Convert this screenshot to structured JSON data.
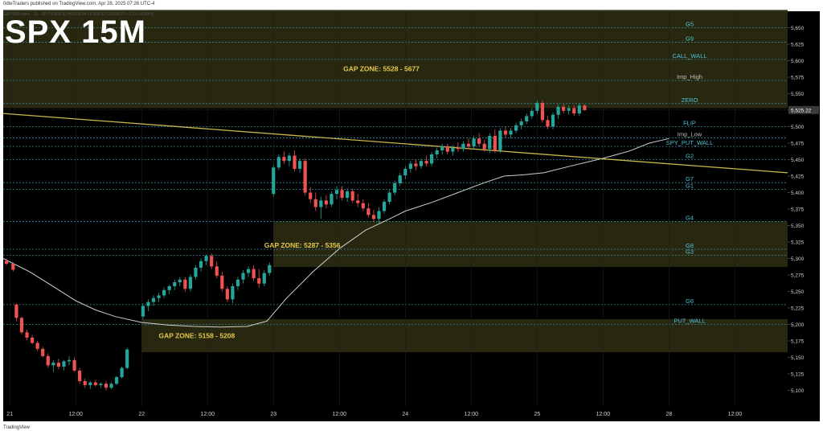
{
  "header": {
    "published": "0dteTraders published on TradingView.com, Apr 28, 2025 07:26 UTC-4",
    "instrument": "S&P 500 Index · 15 · SP  O5,524.32  H5,525.24  L5,524.32  C5,525.22 +1.71 (+0.03%)"
  },
  "title_overlay": "SPX 15M",
  "footer": {
    "brand": "TradingView"
  },
  "colors": {
    "background": "#000000",
    "gap_zone": "#2a2a12",
    "up_candle": "#26a69a",
    "down_candle": "#ef5350",
    "level_line": "#2f8fa0",
    "level_label": "#4fc3d9",
    "trendline": "#c9b84a",
    "moving_average": "#cfcfcf",
    "zone_label": "#e5c84a",
    "price_tag": "#3a3a3a"
  },
  "chart_data": {
    "type": "candlestick",
    "timeframe": "15M",
    "ylim": [
      5075,
      5675
    ],
    "y_ticks": [
      5100,
      5125,
      5150,
      5175,
      5200,
      5225,
      5250,
      5275,
      5300,
      5325,
      5350,
      5375,
      5400,
      5425,
      5450,
      5475,
      5500,
      5525,
      5550,
      5575,
      5600,
      5625,
      5650
    ],
    "x_ticks": [
      {
        "label": "21",
        "x": 0
      },
      {
        "label": "12:00",
        "x": 1
      },
      {
        "label": "22",
        "x": 2
      },
      {
        "label": "12:00",
        "x": 3
      },
      {
        "label": "23",
        "x": 4
      },
      {
        "label": "12:00",
        "x": 5
      },
      {
        "label": "24",
        "x": 6
      },
      {
        "label": "12:00",
        "x": 7
      },
      {
        "label": "25",
        "x": 8
      },
      {
        "label": "12:00",
        "x": 9
      },
      {
        "label": "28",
        "x": 10
      },
      {
        "label": "12:00",
        "x": 11
      }
    ],
    "xlim": [
      -0.1,
      11.8
    ],
    "current_price": "5,525.22",
    "current_value": 5525.22,
    "gap_zones": [
      {
        "label": "GAP ZONE: 5528 - 5677",
        "low": 5528,
        "high": 5677,
        "x_start": -0.1
      },
      {
        "label": "GAP ZONE: 5287 - 5356",
        "low": 5287,
        "high": 5356,
        "x_start": 4.0
      },
      {
        "label": "GAP ZONE: 5158 - 5208",
        "low": 5158,
        "high": 5208,
        "x_start": 2.0
      }
    ],
    "levels": [
      {
        "label": "G5",
        "value": 5650
      },
      {
        "label": "G9",
        "value": 5628
      },
      {
        "label": "CALL_WALL",
        "value": 5602
      },
      {
        "label": "Imp_High",
        "value": 5570
      },
      {
        "label": "ZERO",
        "value": 5535
      },
      {
        "label": "FLIP",
        "value": 5500
      },
      {
        "label": "Imp_Low",
        "value": 5483
      },
      {
        "label": "SPY_PUT_WALL",
        "value": 5470
      },
      {
        "label": "G2",
        "value": 5450
      },
      {
        "label": "G7",
        "value": 5415
      },
      {
        "label": "G1",
        "value": 5405
      },
      {
        "label": "G4",
        "value": 5356
      },
      {
        "label": "G8",
        "value": 5314
      },
      {
        "label": "G3",
        "value": 5305
      },
      {
        "label": "G6",
        "value": 5230
      },
      {
        "label": "PUT_WALL",
        "value": 5200
      }
    ],
    "trendline": {
      "start": [
        -0.1,
        5520
      ],
      "end": [
        11.8,
        5430
      ]
    },
    "moving_average": [
      [
        -0.1,
        5300
      ],
      [
        0.3,
        5280
      ],
      [
        0.7,
        5255
      ],
      [
        1.0,
        5236
      ],
      [
        1.3,
        5222
      ],
      [
        1.6,
        5212
      ],
      [
        2.0,
        5203
      ],
      [
        2.4,
        5199
      ],
      [
        2.8,
        5197
      ],
      [
        3.2,
        5196
      ],
      [
        3.6,
        5197
      ],
      [
        3.9,
        5205
      ],
      [
        4.2,
        5240
      ],
      [
        4.6,
        5280
      ],
      [
        5.0,
        5315
      ],
      [
        5.4,
        5343
      ],
      [
        5.8,
        5362
      ],
      [
        6.0,
        5372
      ],
      [
        6.4,
        5385
      ],
      [
        6.8,
        5400
      ],
      [
        7.2,
        5415
      ],
      [
        7.5,
        5425
      ],
      [
        7.8,
        5427
      ],
      [
        8.1,
        5430
      ],
      [
        8.5,
        5440
      ],
      [
        9.0,
        5452
      ],
      [
        9.4,
        5463
      ],
      [
        9.7,
        5475
      ],
      [
        10.0,
        5482
      ]
    ],
    "candles": [
      {
        "x": -0.05,
        "o": 5296,
        "h": 5300,
        "l": 5290,
        "c": 5292
      },
      {
        "x": 0.05,
        "o": 5292,
        "h": 5294,
        "l": 5280,
        "c": 5283
      },
      {
        "x": 0.1,
        "o": 5230,
        "h": 5232,
        "l": 5205,
        "c": 5210
      },
      {
        "x": 0.18,
        "o": 5210,
        "h": 5212,
        "l": 5185,
        "c": 5188
      },
      {
        "x": 0.26,
        "o": 5188,
        "h": 5192,
        "l": 5176,
        "c": 5180
      },
      {
        "x": 0.34,
        "o": 5180,
        "h": 5184,
        "l": 5170,
        "c": 5172
      },
      {
        "x": 0.42,
        "o": 5172,
        "h": 5175,
        "l": 5160,
        "c": 5163
      },
      {
        "x": 0.5,
        "o": 5163,
        "h": 5166,
        "l": 5150,
        "c": 5152
      },
      {
        "x": 0.58,
        "o": 5152,
        "h": 5156,
        "l": 5134,
        "c": 5138
      },
      {
        "x": 0.66,
        "o": 5138,
        "h": 5146,
        "l": 5128,
        "c": 5142
      },
      {
        "x": 0.74,
        "o": 5142,
        "h": 5148,
        "l": 5132,
        "c": 5136
      },
      {
        "x": 0.82,
        "o": 5136,
        "h": 5146,
        "l": 5130,
        "c": 5144
      },
      {
        "x": 0.9,
        "o": 5144,
        "h": 5152,
        "l": 5138,
        "c": 5146
      },
      {
        "x": 0.98,
        "o": 5146,
        "h": 5150,
        "l": 5128,
        "c": 5130
      },
      {
        "x": 1.06,
        "o": 5130,
        "h": 5134,
        "l": 5110,
        "c": 5114
      },
      {
        "x": 1.14,
        "o": 5114,
        "h": 5118,
        "l": 5104,
        "c": 5108
      },
      {
        "x": 1.22,
        "o": 5108,
        "h": 5114,
        "l": 5102,
        "c": 5112
      },
      {
        "x": 1.3,
        "o": 5112,
        "h": 5116,
        "l": 5106,
        "c": 5108
      },
      {
        "x": 1.38,
        "o": 5108,
        "h": 5112,
        "l": 5104,
        "c": 5110
      },
      {
        "x": 1.46,
        "o": 5110,
        "h": 5114,
        "l": 5100,
        "c": 5104
      },
      {
        "x": 1.54,
        "o": 5104,
        "h": 5112,
        "l": 5102,
        "c": 5110
      },
      {
        "x": 1.62,
        "o": 5110,
        "h": 5122,
        "l": 5108,
        "c": 5120
      },
      {
        "x": 1.7,
        "o": 5120,
        "h": 5136,
        "l": 5118,
        "c": 5134
      },
      {
        "x": 1.78,
        "o": 5134,
        "h": 5165,
        "l": 5132,
        "c": 5162
      },
      {
        "x": 2.02,
        "o": 5212,
        "h": 5232,
        "l": 5208,
        "c": 5228
      },
      {
        "x": 2.1,
        "o": 5228,
        "h": 5238,
        "l": 5220,
        "c": 5234
      },
      {
        "x": 2.18,
        "o": 5234,
        "h": 5244,
        "l": 5228,
        "c": 5240
      },
      {
        "x": 2.26,
        "o": 5240,
        "h": 5248,
        "l": 5234,
        "c": 5244
      },
      {
        "x": 2.34,
        "o": 5244,
        "h": 5256,
        "l": 5240,
        "c": 5252
      },
      {
        "x": 2.42,
        "o": 5252,
        "h": 5260,
        "l": 5246,
        "c": 5258
      },
      {
        "x": 2.5,
        "o": 5258,
        "h": 5268,
        "l": 5252,
        "c": 5264
      },
      {
        "x": 2.58,
        "o": 5264,
        "h": 5272,
        "l": 5258,
        "c": 5268
      },
      {
        "x": 2.66,
        "o": 5268,
        "h": 5272,
        "l": 5250,
        "c": 5254
      },
      {
        "x": 2.74,
        "o": 5254,
        "h": 5276,
        "l": 5250,
        "c": 5272
      },
      {
        "x": 2.82,
        "o": 5272,
        "h": 5290,
        "l": 5268,
        "c": 5286
      },
      {
        "x": 2.9,
        "o": 5286,
        "h": 5300,
        "l": 5280,
        "c": 5296
      },
      {
        "x": 2.98,
        "o": 5296,
        "h": 5306,
        "l": 5290,
        "c": 5304
      },
      {
        "x": 3.06,
        "o": 5304,
        "h": 5308,
        "l": 5284,
        "c": 5288
      },
      {
        "x": 3.14,
        "o": 5288,
        "h": 5296,
        "l": 5270,
        "c": 5274
      },
      {
        "x": 3.22,
        "o": 5274,
        "h": 5280,
        "l": 5250,
        "c": 5254
      },
      {
        "x": 3.3,
        "o": 5254,
        "h": 5258,
        "l": 5234,
        "c": 5238
      },
      {
        "x": 3.38,
        "o": 5238,
        "h": 5262,
        "l": 5232,
        "c": 5258
      },
      {
        "x": 3.46,
        "o": 5258,
        "h": 5272,
        "l": 5252,
        "c": 5268
      },
      {
        "x": 3.54,
        "o": 5268,
        "h": 5282,
        "l": 5262,
        "c": 5278
      },
      {
        "x": 3.62,
        "o": 5278,
        "h": 5288,
        "l": 5272,
        "c": 5284
      },
      {
        "x": 3.7,
        "o": 5284,
        "h": 5290,
        "l": 5266,
        "c": 5270
      },
      {
        "x": 3.78,
        "o": 5270,
        "h": 5284,
        "l": 5256,
        "c": 5262
      },
      {
        "x": 3.86,
        "o": 5262,
        "h": 5282,
        "l": 5258,
        "c": 5278
      },
      {
        "x": 3.94,
        "o": 5278,
        "h": 5294,
        "l": 5274,
        "c": 5290
      },
      {
        "x": 4.0,
        "o": 5398,
        "h": 5442,
        "l": 5394,
        "c": 5438
      },
      {
        "x": 4.08,
        "o": 5438,
        "h": 5458,
        "l": 5434,
        "c": 5454
      },
      {
        "x": 4.16,
        "o": 5454,
        "h": 5462,
        "l": 5444,
        "c": 5448
      },
      {
        "x": 4.24,
        "o": 5448,
        "h": 5460,
        "l": 5440,
        "c": 5456
      },
      {
        "x": 4.32,
        "o": 5456,
        "h": 5464,
        "l": 5432,
        "c": 5436
      },
      {
        "x": 4.4,
        "o": 5436,
        "h": 5452,
        "l": 5430,
        "c": 5448
      },
      {
        "x": 4.48,
        "o": 5448,
        "h": 5452,
        "l": 5396,
        "c": 5400
      },
      {
        "x": 4.56,
        "o": 5400,
        "h": 5408,
        "l": 5384,
        "c": 5390
      },
      {
        "x": 4.64,
        "o": 5390,
        "h": 5400,
        "l": 5372,
        "c": 5378
      },
      {
        "x": 4.72,
        "o": 5378,
        "h": 5394,
        "l": 5360,
        "c": 5388
      },
      {
        "x": 4.8,
        "o": 5388,
        "h": 5396,
        "l": 5376,
        "c": 5382
      },
      {
        "x": 4.88,
        "o": 5382,
        "h": 5402,
        "l": 5378,
        "c": 5398
      },
      {
        "x": 4.96,
        "o": 5398,
        "h": 5410,
        "l": 5390,
        "c": 5404
      },
      {
        "x": 5.04,
        "o": 5404,
        "h": 5410,
        "l": 5388,
        "c": 5392
      },
      {
        "x": 5.12,
        "o": 5392,
        "h": 5406,
        "l": 5386,
        "c": 5402
      },
      {
        "x": 5.2,
        "o": 5402,
        "h": 5406,
        "l": 5384,
        "c": 5388
      },
      {
        "x": 5.28,
        "o": 5388,
        "h": 5398,
        "l": 5378,
        "c": 5384
      },
      {
        "x": 5.36,
        "o": 5384,
        "h": 5390,
        "l": 5372,
        "c": 5376
      },
      {
        "x": 5.44,
        "o": 5376,
        "h": 5384,
        "l": 5362,
        "c": 5366
      },
      {
        "x": 5.52,
        "o": 5366,
        "h": 5374,
        "l": 5356,
        "c": 5360
      },
      {
        "x": 5.6,
        "o": 5360,
        "h": 5378,
        "l": 5354,
        "c": 5372
      },
      {
        "x": 5.68,
        "o": 5372,
        "h": 5390,
        "l": 5368,
        "c": 5386
      },
      {
        "x": 5.76,
        "o": 5386,
        "h": 5404,
        "l": 5382,
        "c": 5400
      },
      {
        "x": 5.84,
        "o": 5400,
        "h": 5418,
        "l": 5396,
        "c": 5414
      },
      {
        "x": 5.92,
        "o": 5414,
        "h": 5430,
        "l": 5410,
        "c": 5426
      },
      {
        "x": 6.0,
        "o": 5426,
        "h": 5440,
        "l": 5420,
        "c": 5436
      },
      {
        "x": 6.08,
        "o": 5436,
        "h": 5448,
        "l": 5430,
        "c": 5444
      },
      {
        "x": 6.16,
        "o": 5444,
        "h": 5450,
        "l": 5434,
        "c": 5440
      },
      {
        "x": 6.24,
        "o": 5440,
        "h": 5452,
        "l": 5436,
        "c": 5448
      },
      {
        "x": 6.32,
        "o": 5448,
        "h": 5456,
        "l": 5440,
        "c": 5444
      },
      {
        "x": 6.4,
        "o": 5444,
        "h": 5462,
        "l": 5440,
        "c": 5458
      },
      {
        "x": 6.48,
        "o": 5458,
        "h": 5468,
        "l": 5452,
        "c": 5464
      },
      {
        "x": 6.56,
        "o": 5464,
        "h": 5474,
        "l": 5458,
        "c": 5470
      },
      {
        "x": 6.64,
        "o": 5470,
        "h": 5474,
        "l": 5458,
        "c": 5462
      },
      {
        "x": 6.72,
        "o": 5462,
        "h": 5472,
        "l": 5456,
        "c": 5468
      },
      {
        "x": 6.8,
        "o": 5468,
        "h": 5476,
        "l": 5462,
        "c": 5466
      },
      {
        "x": 6.88,
        "o": 5466,
        "h": 5478,
        "l": 5462,
        "c": 5474
      },
      {
        "x": 6.96,
        "o": 5474,
        "h": 5482,
        "l": 5466,
        "c": 5470
      },
      {
        "x": 7.04,
        "o": 5470,
        "h": 5486,
        "l": 5466,
        "c": 5482
      },
      {
        "x": 7.12,
        "o": 5482,
        "h": 5490,
        "l": 5470,
        "c": 5474
      },
      {
        "x": 7.2,
        "o": 5474,
        "h": 5480,
        "l": 5462,
        "c": 5466
      },
      {
        "x": 7.28,
        "o": 5466,
        "h": 5490,
        "l": 5460,
        "c": 5486
      },
      {
        "x": 7.36,
        "o": 5486,
        "h": 5496,
        "l": 5460,
        "c": 5464
      },
      {
        "x": 7.44,
        "o": 5464,
        "h": 5498,
        "l": 5460,
        "c": 5494
      },
      {
        "x": 7.52,
        "o": 5494,
        "h": 5500,
        "l": 5484,
        "c": 5488
      },
      {
        "x": 7.6,
        "o": 5488,
        "h": 5498,
        "l": 5482,
        "c": 5494
      },
      {
        "x": 7.68,
        "o": 5494,
        "h": 5506,
        "l": 5490,
        "c": 5502
      },
      {
        "x": 7.76,
        "o": 5502,
        "h": 5512,
        "l": 5496,
        "c": 5508
      },
      {
        "x": 7.84,
        "o": 5508,
        "h": 5520,
        "l": 5504,
        "c": 5516
      },
      {
        "x": 7.92,
        "o": 5516,
        "h": 5528,
        "l": 5512,
        "c": 5524
      },
      {
        "x": 8.0,
        "o": 5524,
        "h": 5540,
        "l": 5520,
        "c": 5536
      },
      {
        "x": 8.08,
        "o": 5536,
        "h": 5540,
        "l": 5506,
        "c": 5510
      },
      {
        "x": 8.16,
        "o": 5510,
        "h": 5516,
        "l": 5496,
        "c": 5500
      },
      {
        "x": 8.24,
        "o": 5500,
        "h": 5522,
        "l": 5496,
        "c": 5518
      },
      {
        "x": 8.32,
        "o": 5518,
        "h": 5534,
        "l": 5512,
        "c": 5530
      },
      {
        "x": 8.4,
        "o": 5530,
        "h": 5534,
        "l": 5520,
        "c": 5524
      },
      {
        "x": 8.48,
        "o": 5524,
        "h": 5532,
        "l": 5518,
        "c": 5528
      },
      {
        "x": 8.56,
        "o": 5528,
        "h": 5532,
        "l": 5516,
        "c": 5520
      },
      {
        "x": 8.64,
        "o": 5520,
        "h": 5536,
        "l": 5516,
        "c": 5532
      },
      {
        "x": 8.72,
        "o": 5532,
        "h": 5534,
        "l": 5524,
        "c": 5525
      }
    ]
  }
}
